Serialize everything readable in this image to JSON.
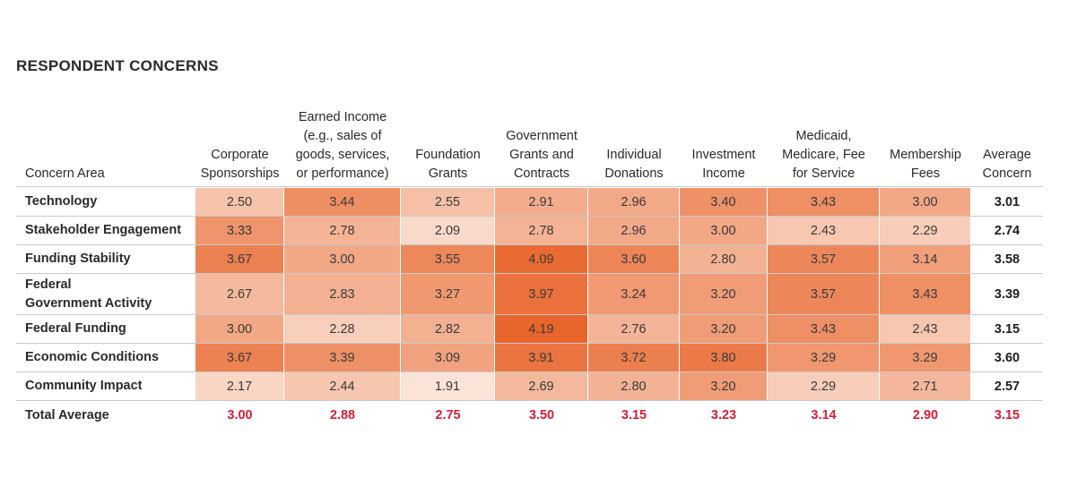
{
  "chart_data": {
    "type": "heatmap",
    "title": "RESPONDENT CONCERNS",
    "row_header": "Concern Area",
    "columns": [
      "Corporate\nSponsorships",
      "Earned Income\n(e.g., sales of\ngoods, services,\nor performance)",
      "Foundation\nGrants",
      "Government\nGrants and\nContracts",
      "Individual\nDonations",
      "Investment\nIncome",
      "Medicaid,\nMedicare, Fee\nfor Service",
      "Membership\nFees"
    ],
    "average_header": "Average\nConcern",
    "rows": [
      {
        "label": "Technology",
        "values": [
          "2.50",
          "3.44",
          "2.55",
          "2.91",
          "2.96",
          "3.40",
          "3.43",
          "3.00"
        ],
        "average": "3.01"
      },
      {
        "label": "Stakeholder Engagement",
        "values": [
          "3.33",
          "2.78",
          "2.09",
          "2.78",
          "2.96",
          "3.00",
          "2.43",
          "2.29"
        ],
        "average": "2.74"
      },
      {
        "label": "Funding Stability",
        "values": [
          "3.67",
          "3.00",
          "3.55",
          "4.09",
          "3.60",
          "2.80",
          "3.57",
          "3.14"
        ],
        "average": "3.58"
      },
      {
        "label": "Federal\nGovernment Activity",
        "values": [
          "2.67",
          "2.83",
          "3.27",
          "3.97",
          "3.24",
          "3.20",
          "3.57",
          "3.43"
        ],
        "average": "3.39"
      },
      {
        "label": "Federal Funding",
        "values": [
          "3.00",
          "2.28",
          "2.82",
          "4.19",
          "2.76",
          "3.20",
          "3.43",
          "2.43"
        ],
        "average": "3.15"
      },
      {
        "label": "Economic Conditions",
        "values": [
          "3.67",
          "3.39",
          "3.09",
          "3.91",
          "3.72",
          "3.80",
          "3.29",
          "3.29"
        ],
        "average": "3.60"
      },
      {
        "label": "Community Impact",
        "values": [
          "2.17",
          "2.44",
          "1.91",
          "2.69",
          "2.80",
          "3.20",
          "2.29",
          "2.71"
        ],
        "average": "2.57"
      }
    ],
    "total": {
      "label": "Total Average",
      "values": [
        "3.00",
        "2.88",
        "2.75",
        "3.50",
        "3.15",
        "3.23",
        "3.14",
        "2.90"
      ],
      "average": "3.15"
    },
    "color_range": [
      1.9,
      4.2
    ],
    "colors": {
      "low": "#fbe4d8",
      "high": "#e8642a",
      "total_text": "#d0203a"
    }
  }
}
